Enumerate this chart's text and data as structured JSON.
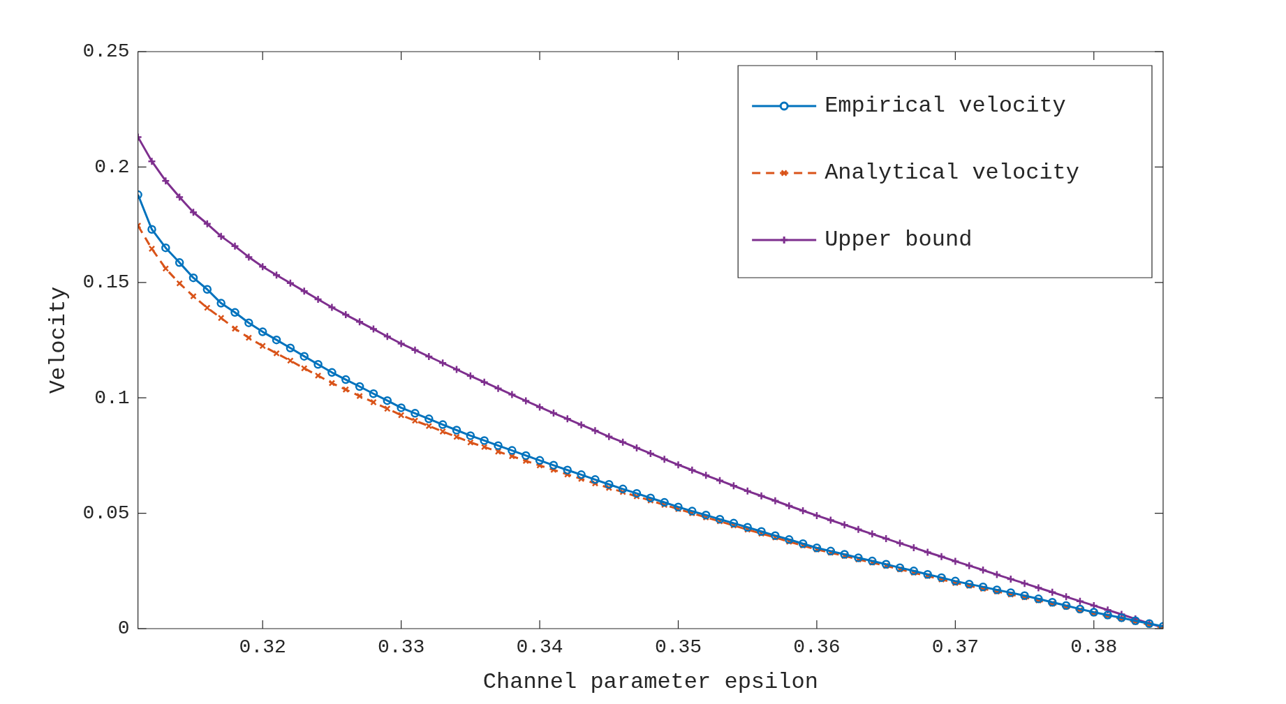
{
  "chart_data": {
    "type": "line",
    "xlabel": "Channel parameter epsilon",
    "ylabel": "Velocity",
    "x": [
      0.311,
      0.312,
      0.313,
      0.314,
      0.315,
      0.316,
      0.317,
      0.318,
      0.319,
      0.32,
      0.321,
      0.322,
      0.323,
      0.324,
      0.325,
      0.326,
      0.327,
      0.328,
      0.329,
      0.33,
      0.331,
      0.332,
      0.333,
      0.334,
      0.335,
      0.336,
      0.337,
      0.338,
      0.339,
      0.34,
      0.341,
      0.342,
      0.343,
      0.344,
      0.345,
      0.346,
      0.347,
      0.348,
      0.349,
      0.35,
      0.351,
      0.352,
      0.353,
      0.354,
      0.355,
      0.356,
      0.357,
      0.358,
      0.359,
      0.36,
      0.361,
      0.362,
      0.363,
      0.364,
      0.365,
      0.366,
      0.367,
      0.368,
      0.369,
      0.37,
      0.371,
      0.372,
      0.373,
      0.374,
      0.375,
      0.376,
      0.377,
      0.378,
      0.379,
      0.38,
      0.381,
      0.382,
      0.383,
      0.384,
      0.385
    ],
    "series": [
      {
        "name": "Empirical velocity",
        "color": "#0072bd",
        "marker": "circle",
        "line_style": "solid",
        "values": [
          0.188,
          0.173,
          0.165,
          0.1586,
          0.152,
          0.147,
          0.141,
          0.137,
          0.1325,
          0.1286,
          0.1251,
          0.1216,
          0.118,
          0.1145,
          0.111,
          0.1079,
          0.1049,
          0.1018,
          0.0988,
          0.0957,
          0.0933,
          0.0909,
          0.0884,
          0.086,
          0.0836,
          0.0815,
          0.0793,
          0.0772,
          0.075,
          0.0729,
          0.0708,
          0.0687,
          0.0667,
          0.0646,
          0.0625,
          0.0605,
          0.0586,
          0.0566,
          0.0547,
          0.0527,
          0.0509,
          0.0492,
          0.0474,
          0.0457,
          0.0439,
          0.0421,
          0.0403,
          0.0386,
          0.0368,
          0.035,
          0.0336,
          0.0322,
          0.0307,
          0.0293,
          0.0279,
          0.0264,
          0.025,
          0.0235,
          0.0221,
          0.0206,
          0.0193,
          0.0181,
          0.0168,
          0.0156,
          0.0143,
          0.0129,
          0.0114,
          0.01,
          0.0085,
          0.0071,
          0.0059,
          0.0047,
          0.0034,
          0.0022,
          0.001
        ]
      },
      {
        "name": "Analytical velocity",
        "color": "#d95319",
        "marker": "cross",
        "line_style": "dashed",
        "values": [
          0.1746,
          0.1646,
          0.156,
          0.1496,
          0.144,
          0.139,
          0.1346,
          0.13,
          0.126,
          0.1225,
          0.1193,
          0.1161,
          0.1128,
          0.1096,
          0.1064,
          0.1036,
          0.1008,
          0.0981,
          0.0953,
          0.0925,
          0.0901,
          0.0878,
          0.0854,
          0.0831,
          0.0807,
          0.0787,
          0.0767,
          0.0747,
          0.0727,
          0.0707,
          0.0688,
          0.0668,
          0.0649,
          0.0629,
          0.061,
          0.0592,
          0.0573,
          0.0555,
          0.0536,
          0.0518,
          0.05,
          0.0482,
          0.0465,
          0.0447,
          0.0429,
          0.0412,
          0.0395,
          0.0377,
          0.036,
          0.0343,
          0.0329,
          0.0315,
          0.03,
          0.0286,
          0.0272,
          0.0257,
          0.0242,
          0.0228,
          0.0213,
          0.0198,
          0.0186,
          0.0173,
          0.0161,
          0.0148,
          0.0136,
          0.0122,
          0.0108,
          0.0094,
          0.008,
          0.0066,
          0.0054,
          0.0042,
          0.0029,
          0.0017,
          0.0004
        ]
      },
      {
        "name": "Upper bound",
        "color": "#7e2f8e",
        "marker": "plus",
        "line_style": "solid",
        "values": [
          0.213,
          0.2025,
          0.194,
          0.187,
          0.1804,
          0.1754,
          0.17,
          0.1657,
          0.161,
          0.1568,
          0.1532,
          0.1497,
          0.1462,
          0.1427,
          0.1392,
          0.136,
          0.1329,
          0.1298,
          0.1266,
          0.1235,
          0.1207,
          0.1179,
          0.1151,
          0.1123,
          0.1095,
          0.1068,
          0.1041,
          0.1014,
          0.0987,
          0.096,
          0.0934,
          0.0909,
          0.0883,
          0.0858,
          0.0832,
          0.0808,
          0.0783,
          0.0759,
          0.0734,
          0.071,
          0.0687,
          0.0664,
          0.0642,
          0.0619,
          0.0596,
          0.0575,
          0.0554,
          0.0532,
          0.0511,
          0.049,
          0.047,
          0.045,
          0.043,
          0.041,
          0.039,
          0.037,
          0.0351,
          0.0331,
          0.0312,
          0.0292,
          0.0273,
          0.0254,
          0.0234,
          0.0215,
          0.0196,
          0.0177,
          0.0158,
          0.0138,
          0.0119,
          0.01,
          0.0081,
          0.0062,
          0.0042,
          0.0023,
          0.0004
        ]
      }
    ],
    "xlim": [
      0.311,
      0.385
    ],
    "xticks": [
      0.32,
      0.33,
      0.34,
      0.35,
      0.36,
      0.37,
      0.38
    ],
    "ylim": [
      0,
      0.25
    ],
    "yticks": [
      0,
      0.05,
      0.1,
      0.15,
      0.2,
      0.25
    ],
    "grid": false,
    "legend": "top right"
  }
}
